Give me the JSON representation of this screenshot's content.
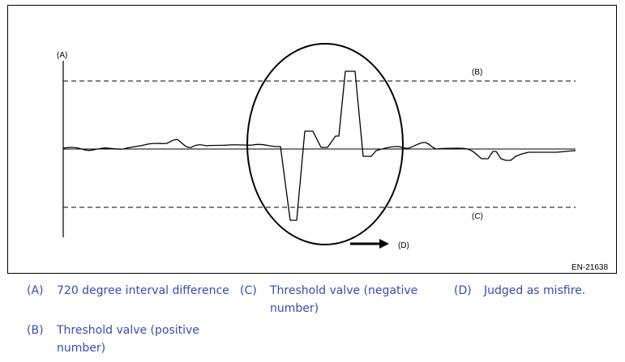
{
  "diagram": {
    "labels": {
      "a": "(A)",
      "b": "(B)",
      "c": "(C)",
      "d": "(D)"
    },
    "figure_code": "EN-21638"
  },
  "legend": {
    "items": [
      {
        "key": "(A)",
        "text": "720 degree interval difference"
      },
      {
        "key": "(B)",
        "text": "Threshold valve (positive number)"
      },
      {
        "key": "(C)",
        "text": "Threshold valve (negative number)"
      },
      {
        "key": "(D)",
        "text": "Judged as misfire."
      }
    ]
  },
  "colors": {
    "legend_text": "#3d4ab3",
    "line": "#000000"
  }
}
